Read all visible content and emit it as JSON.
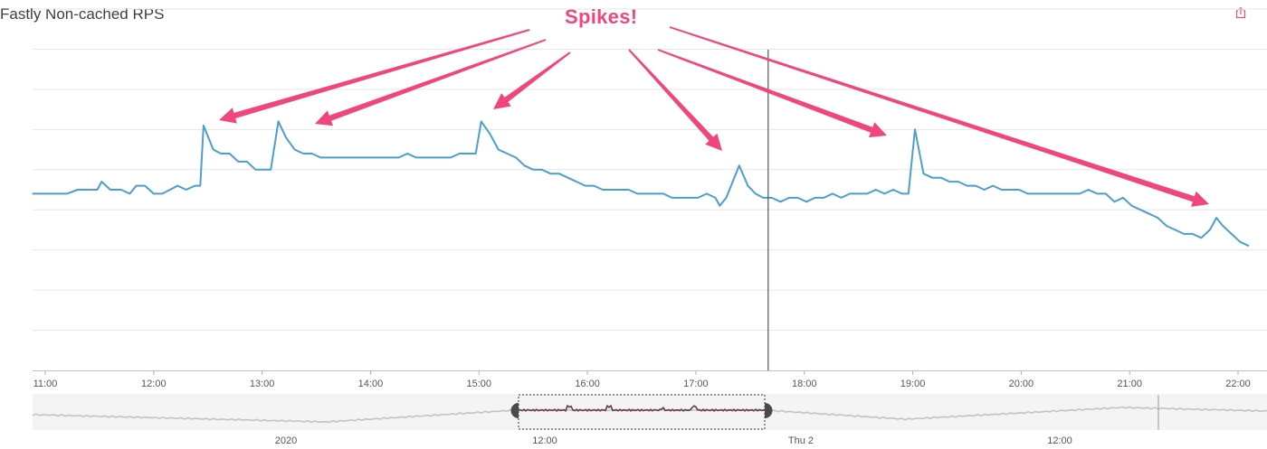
{
  "title": "Fastly Non-cached RPS",
  "share_icon": "share-icon",
  "annotation": {
    "text": "Spikes!",
    "color": "#f0467c"
  },
  "colors": {
    "line": "#4a9fce",
    "grid": "#e6e6e6",
    "cursor": "#555555",
    "navigator_line": "#c2c2c8",
    "navigator_selected": "#6a3b3b",
    "navigator_bg": "#f4f4f4"
  },
  "cursor_time": "17:40",
  "chart_data": {
    "type": "line",
    "title": "Fastly Non-cached RPS",
    "xlabel": "",
    "ylabel": "",
    "x_ticks": [
      "11:00",
      "12:00",
      "13:00",
      "14:00",
      "15:00",
      "16:00",
      "17:00",
      "18:00",
      "19:00",
      "20:00",
      "21:00",
      "22:00"
    ],
    "x_range": [
      "10:53",
      "22:07"
    ],
    "y_ticks_visible": false,
    "y_range": [
      0,
      9
    ],
    "grid": true,
    "legend": "none",
    "series": [
      {
        "values": [
          [
            10.88,
            4.4
          ],
          [
            10.98,
            4.4
          ],
          [
            11.1,
            4.4
          ],
          [
            11.2,
            4.4
          ],
          [
            11.3,
            4.5
          ],
          [
            11.4,
            4.5
          ],
          [
            11.48,
            4.5
          ],
          [
            11.52,
            4.7
          ],
          [
            11.6,
            4.5
          ],
          [
            11.7,
            4.5
          ],
          [
            11.78,
            4.4
          ],
          [
            11.84,
            4.6
          ],
          [
            11.92,
            4.6
          ],
          [
            12.0,
            4.4
          ],
          [
            12.08,
            4.4
          ],
          [
            12.15,
            4.5
          ],
          [
            12.22,
            4.6
          ],
          [
            12.3,
            4.5
          ],
          [
            12.38,
            4.6
          ],
          [
            12.43,
            4.6
          ],
          [
            12.46,
            6.1
          ],
          [
            12.52,
            5.7
          ],
          [
            12.55,
            5.5
          ],
          [
            12.62,
            5.4
          ],
          [
            12.7,
            5.4
          ],
          [
            12.78,
            5.2
          ],
          [
            12.86,
            5.2
          ],
          [
            12.94,
            5.0
          ],
          [
            13.0,
            5.0
          ],
          [
            13.08,
            5.0
          ],
          [
            13.15,
            6.2
          ],
          [
            13.22,
            5.8
          ],
          [
            13.3,
            5.5
          ],
          [
            13.38,
            5.4
          ],
          [
            13.46,
            5.4
          ],
          [
            13.54,
            5.3
          ],
          [
            13.62,
            5.3
          ],
          [
            13.7,
            5.3
          ],
          [
            13.78,
            5.3
          ],
          [
            13.86,
            5.3
          ],
          [
            13.94,
            5.3
          ],
          [
            14.02,
            5.3
          ],
          [
            14.1,
            5.3
          ],
          [
            14.18,
            5.3
          ],
          [
            14.26,
            5.3
          ],
          [
            14.34,
            5.4
          ],
          [
            14.42,
            5.3
          ],
          [
            14.5,
            5.3
          ],
          [
            14.58,
            5.3
          ],
          [
            14.66,
            5.3
          ],
          [
            14.74,
            5.3
          ],
          [
            14.82,
            5.4
          ],
          [
            14.9,
            5.4
          ],
          [
            14.97,
            5.4
          ],
          [
            15.02,
            6.2
          ],
          [
            15.1,
            5.9
          ],
          [
            15.18,
            5.5
          ],
          [
            15.26,
            5.4
          ],
          [
            15.34,
            5.3
          ],
          [
            15.42,
            5.1
          ],
          [
            15.5,
            5.0
          ],
          [
            15.58,
            5.0
          ],
          [
            15.66,
            4.9
          ],
          [
            15.74,
            4.9
          ],
          [
            15.82,
            4.8
          ],
          [
            15.9,
            4.7
          ],
          [
            15.98,
            4.6
          ],
          [
            16.06,
            4.6
          ],
          [
            16.14,
            4.5
          ],
          [
            16.22,
            4.5
          ],
          [
            16.3,
            4.5
          ],
          [
            16.38,
            4.5
          ],
          [
            16.46,
            4.4
          ],
          [
            16.54,
            4.4
          ],
          [
            16.62,
            4.4
          ],
          [
            16.7,
            4.4
          ],
          [
            16.78,
            4.3
          ],
          [
            16.86,
            4.3
          ],
          [
            16.94,
            4.3
          ],
          [
            17.02,
            4.3
          ],
          [
            17.1,
            4.4
          ],
          [
            17.18,
            4.3
          ],
          [
            17.22,
            4.1
          ],
          [
            17.28,
            4.3
          ],
          [
            17.4,
            5.1
          ],
          [
            17.48,
            4.6
          ],
          [
            17.55,
            4.4
          ],
          [
            17.62,
            4.3
          ],
          [
            17.7,
            4.3
          ],
          [
            17.78,
            4.2
          ],
          [
            17.86,
            4.3
          ],
          [
            17.94,
            4.3
          ],
          [
            18.02,
            4.2
          ],
          [
            18.1,
            4.3
          ],
          [
            18.18,
            4.3
          ],
          [
            18.26,
            4.4
          ],
          [
            18.34,
            4.3
          ],
          [
            18.42,
            4.4
          ],
          [
            18.5,
            4.4
          ],
          [
            18.58,
            4.4
          ],
          [
            18.66,
            4.5
          ],
          [
            18.74,
            4.4
          ],
          [
            18.82,
            4.5
          ],
          [
            18.9,
            4.4
          ],
          [
            18.96,
            4.4
          ],
          [
            19.02,
            6.0
          ],
          [
            19.1,
            4.9
          ],
          [
            19.18,
            4.8
          ],
          [
            19.26,
            4.8
          ],
          [
            19.34,
            4.7
          ],
          [
            19.42,
            4.7
          ],
          [
            19.5,
            4.6
          ],
          [
            19.58,
            4.6
          ],
          [
            19.66,
            4.5
          ],
          [
            19.74,
            4.6
          ],
          [
            19.82,
            4.5
          ],
          [
            19.9,
            4.5
          ],
          [
            19.98,
            4.5
          ],
          [
            20.06,
            4.4
          ],
          [
            20.14,
            4.4
          ],
          [
            20.22,
            4.4
          ],
          [
            20.3,
            4.4
          ],
          [
            20.38,
            4.4
          ],
          [
            20.46,
            4.4
          ],
          [
            20.54,
            4.4
          ],
          [
            20.62,
            4.5
          ],
          [
            20.7,
            4.4
          ],
          [
            20.78,
            4.4
          ],
          [
            20.86,
            4.2
          ],
          [
            20.94,
            4.3
          ],
          [
            21.02,
            4.1
          ],
          [
            21.1,
            4.0
          ],
          [
            21.18,
            3.9
          ],
          [
            21.26,
            3.8
          ],
          [
            21.34,
            3.6
          ],
          [
            21.42,
            3.5
          ],
          [
            21.5,
            3.4
          ],
          [
            21.58,
            3.4
          ],
          [
            21.66,
            3.3
          ],
          [
            21.74,
            3.5
          ],
          [
            21.8,
            3.8
          ],
          [
            21.86,
            3.6
          ],
          [
            21.94,
            3.4
          ],
          [
            22.02,
            3.2
          ],
          [
            22.1,
            3.1
          ]
        ]
      }
    ],
    "navigator": {
      "ticks": [
        "2020",
        "12:00",
        "Thu 2",
        "12:00"
      ],
      "selection": [
        "10:53",
        "17:40"
      ]
    }
  }
}
